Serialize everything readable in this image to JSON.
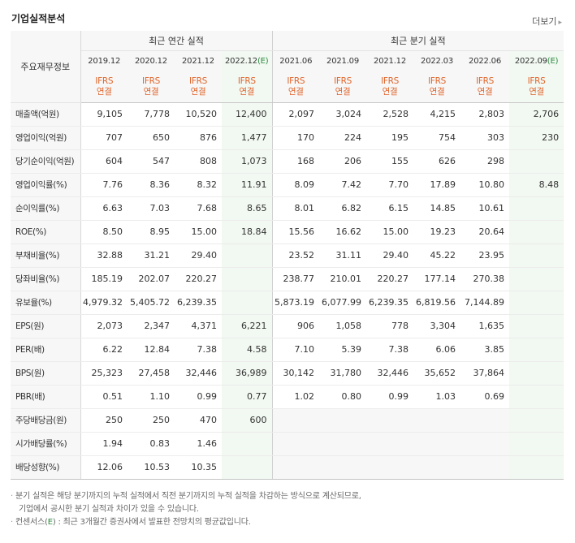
{
  "header": {
    "title": "기업실적분석",
    "more": "더보기"
  },
  "table": {
    "row_header": "주요재무정보",
    "groups": {
      "annual": "최근 연간 실적",
      "quarterly": "최근 분기 실적"
    },
    "annual_periods": [
      "2019.12",
      "2020.12",
      "2021.12",
      "2022.12"
    ],
    "annual_estimate_mark": "(E)",
    "quarter_periods": [
      "2021.06",
      "2021.09",
      "2021.12",
      "2022.03",
      "2022.06",
      "2022.09"
    ],
    "quarter_estimate_mark": "(E)",
    "standard": {
      "ifrs": "IFRS",
      "consol": "연결"
    },
    "rows": [
      {
        "label": "매출액(억원)",
        "values": [
          "9,105",
          "7,778",
          "10,520",
          "12,400",
          "2,097",
          "3,024",
          "2,528",
          "4,215",
          "2,803",
          "2,706"
        ]
      },
      {
        "label": "영업이익(억원)",
        "values": [
          "707",
          "650",
          "876",
          "1,477",
          "170",
          "224",
          "195",
          "754",
          "303",
          "230"
        ]
      },
      {
        "label": "당기순이익(억원)",
        "values": [
          "604",
          "547",
          "808",
          "1,073",
          "168",
          "206",
          "155",
          "626",
          "298",
          ""
        ]
      },
      {
        "label": "영업이익률(%)",
        "values": [
          "7.76",
          "8.36",
          "8.32",
          "11.91",
          "8.09",
          "7.42",
          "7.70",
          "17.89",
          "10.80",
          "8.48"
        ]
      },
      {
        "label": "순이익률(%)",
        "values": [
          "6.63",
          "7.03",
          "7.68",
          "8.65",
          "8.01",
          "6.82",
          "6.15",
          "14.85",
          "10.61",
          ""
        ]
      },
      {
        "label": "ROE(%)",
        "values": [
          "8.50",
          "8.95",
          "15.00",
          "18.84",
          "15.56",
          "16.62",
          "15.00",
          "19.23",
          "20.64",
          ""
        ]
      },
      {
        "label": "부채비율(%)",
        "values": [
          "32.88",
          "31.21",
          "29.40",
          "",
          "23.52",
          "31.11",
          "29.40",
          "45.22",
          "23.95",
          ""
        ]
      },
      {
        "label": "당좌비율(%)",
        "values": [
          "185.19",
          "202.07",
          "220.27",
          "",
          "238.77",
          "210.01",
          "220.27",
          "177.14",
          "270.38",
          ""
        ]
      },
      {
        "label": "유보율(%)",
        "values": [
          "4,979.32",
          "5,405.72",
          "6,239.35",
          "",
          "5,873.19",
          "6,077.99",
          "6,239.35",
          "6,819.56",
          "7,144.89",
          ""
        ]
      },
      {
        "label": "EPS(원)",
        "values": [
          "2,073",
          "2,347",
          "4,371",
          "6,221",
          "906",
          "1,058",
          "778",
          "3,304",
          "1,635",
          ""
        ]
      },
      {
        "label": "PER(배)",
        "values": [
          "6.22",
          "12.84",
          "7.38",
          "4.58",
          "7.10",
          "5.39",
          "7.38",
          "6.06",
          "3.85",
          ""
        ]
      },
      {
        "label": "BPS(원)",
        "values": [
          "25,323",
          "27,458",
          "32,446",
          "36,989",
          "30,142",
          "31,780",
          "32,446",
          "35,652",
          "37,864",
          ""
        ]
      },
      {
        "label": "PBR(배)",
        "values": [
          "0.51",
          "1.10",
          "0.99",
          "0.77",
          "1.02",
          "0.80",
          "0.99",
          "1.03",
          "0.69",
          ""
        ]
      },
      {
        "label": "주당배당금(원)",
        "values": [
          "250",
          "250",
          "470",
          "600",
          "",
          "",
          "",
          "",
          "",
          ""
        ]
      },
      {
        "label": "시가배당률(%)",
        "values": [
          "1.94",
          "0.83",
          "1.46",
          "",
          "",
          "",
          "",
          "",
          "",
          ""
        ]
      },
      {
        "label": "배당성향(%)",
        "values": [
          "12.06",
          "10.53",
          "10.35",
          "",
          "",
          "",
          "",
          "",
          "",
          ""
        ]
      }
    ]
  },
  "notes": {
    "line1": "분기 실적은 해당 분기까지의 누적 실적에서 직전 분기까지의 누적 실적을 차감하는 방식으로 계산되므로,",
    "line2": "기업에서 공시한 분기 실적과 차이가 있을 수 있습니다.",
    "line3_prefix": "컨센서스(",
    "line3_mark": "E",
    "line3_suffix": ") : 최근 3개월간 증권사에서 발표한 전망치의 평균값입니다."
  }
}
